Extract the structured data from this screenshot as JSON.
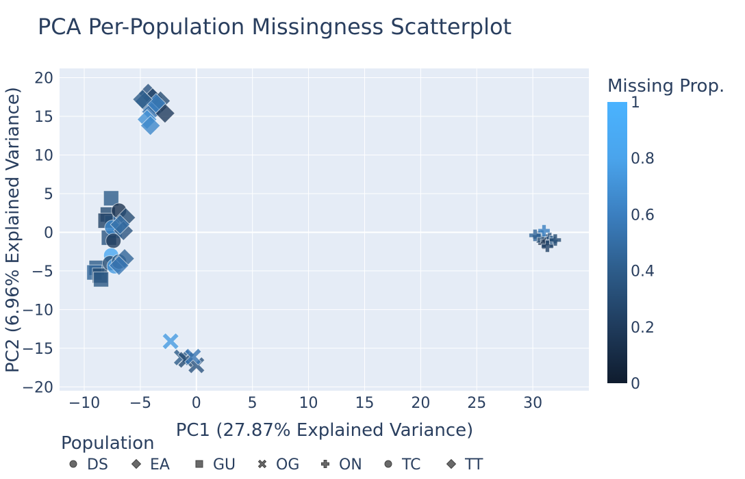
{
  "chart_data": {
    "type": "scatter",
    "title": "PCA Per-Population Missingness Scatterplot",
    "xlabel": "PC1 (27.87% Explained Variance)",
    "ylabel": "PC2 (6.96% Explained Variance)",
    "xlim": [
      -12.2,
      35
    ],
    "ylim": [
      -20.5,
      21.2
    ],
    "xticks": [
      -10,
      -5,
      0,
      5,
      10,
      15,
      20,
      25,
      30
    ],
    "yticks": [
      -20,
      -15,
      -10,
      -5,
      0,
      5,
      10,
      15,
      20
    ],
    "xtick_labels": [
      "−10",
      "−5",
      "0",
      "5",
      "10",
      "15",
      "20",
      "25",
      "30"
    ],
    "ytick_labels": [
      "−20",
      "−15",
      "−10",
      "−5",
      "0",
      "5",
      "10",
      "15",
      "20"
    ],
    "colorbar": {
      "title": "Missing Prop.",
      "range": [
        0,
        1
      ],
      "ticks": [
        0,
        0.2,
        0.4,
        0.6,
        0.8,
        1
      ],
      "tick_labels": [
        "0",
        "0.2",
        "0.4",
        "0.6",
        "0.8",
        "1"
      ],
      "colors": [
        "#0f1c2e",
        "#1f3b5c",
        "#2d5c8a",
        "#3b7fc0",
        "#4aa4ec",
        "#4ab3ff"
      ]
    },
    "legend": {
      "title": "Population",
      "placement": "bottom-left",
      "entries": [
        {
          "name": "DS",
          "symbol": "circle"
        },
        {
          "name": "EA",
          "symbol": "diamond"
        },
        {
          "name": "GU",
          "symbol": "square"
        },
        {
          "name": "OG",
          "symbol": "x"
        },
        {
          "name": "ON",
          "symbol": "cross"
        },
        {
          "name": "TC",
          "symbol": "circle"
        },
        {
          "name": "TT",
          "symbol": "diamond"
        }
      ]
    },
    "series": [
      {
        "name": "EA",
        "symbol": "diamond",
        "points": [
          {
            "x": -4.3,
            "y": 18.0,
            "m": 0.35
          },
          {
            "x": -3.9,
            "y": 17.4,
            "m": 0.25
          },
          {
            "x": -4.6,
            "y": 16.9,
            "m": 0.45
          },
          {
            "x": -3.5,
            "y": 16.2,
            "m": 0.2
          },
          {
            "x": -4.0,
            "y": 15.6,
            "m": 0.55
          },
          {
            "x": -3.2,
            "y": 17.0,
            "m": 0.3
          },
          {
            "x": -4.4,
            "y": 14.6,
            "m": 0.7
          },
          {
            "x": -4.1,
            "y": 13.8,
            "m": 0.65
          },
          {
            "x": -2.8,
            "y": 15.4,
            "m": 0.2
          },
          {
            "x": -3.6,
            "y": 16.7,
            "m": 0.6
          },
          {
            "x": -4.8,
            "y": 17.2,
            "m": 0.4
          }
        ]
      },
      {
        "name": "GU",
        "symbol": "square",
        "points": [
          {
            "x": -7.6,
            "y": 4.4,
            "m": 0.4
          },
          {
            "x": -7.9,
            "y": 2.3,
            "m": 0.3
          },
          {
            "x": -7.5,
            "y": 1.2,
            "m": 0.5
          },
          {
            "x": -7.3,
            "y": 0.2,
            "m": 0.7
          },
          {
            "x": -7.8,
            "y": -0.7,
            "m": 0.35
          },
          {
            "x": -8.9,
            "y": -4.6,
            "m": 0.4
          },
          {
            "x": -9.1,
            "y": -5.2,
            "m": 0.45
          },
          {
            "x": -8.6,
            "y": -5.6,
            "m": 0.3
          },
          {
            "x": -8.5,
            "y": -6.1,
            "m": 0.38
          },
          {
            "x": -8.1,
            "y": 1.5,
            "m": 0.25
          }
        ]
      },
      {
        "name": "DS",
        "symbol": "circle",
        "points": [
          {
            "x": -6.9,
            "y": 2.8,
            "m": 0.15
          },
          {
            "x": -7.5,
            "y": 0.6,
            "m": 0.65
          },
          {
            "x": -7.4,
            "y": -1.1,
            "m": 0.2
          },
          {
            "x": -7.6,
            "y": -3.0,
            "m": 0.85
          },
          {
            "x": -7.7,
            "y": -4.0,
            "m": 0.3
          },
          {
            "x": -7.3,
            "y": -4.4,
            "m": 0.75
          },
          {
            "x": -6.9,
            "y": -3.8,
            "m": 0.4
          }
        ]
      },
      {
        "name": "TT",
        "symbol": "diamond",
        "points": [
          {
            "x": -6.3,
            "y": 1.9,
            "m": 0.3
          },
          {
            "x": -6.5,
            "y": 0.2,
            "m": 0.35
          },
          {
            "x": -6.4,
            "y": -3.4,
            "m": 0.45
          },
          {
            "x": -6.9,
            "y": -4.3,
            "m": 0.55
          },
          {
            "x": -6.8,
            "y": 1.0,
            "m": 0.5
          }
        ]
      },
      {
        "name": "OG",
        "symbol": "x",
        "points": [
          {
            "x": -2.3,
            "y": -14.1,
            "m": 0.75
          },
          {
            "x": -1.3,
            "y": -16.2,
            "m": 0.4
          },
          {
            "x": -0.9,
            "y": -16.5,
            "m": 0.3
          },
          {
            "x": 0.0,
            "y": -17.2,
            "m": 0.35
          },
          {
            "x": -0.3,
            "y": -16.1,
            "m": 0.55
          }
        ]
      },
      {
        "name": "ON",
        "symbol": "cross",
        "points": [
          {
            "x": 30.8,
            "y": -0.5,
            "m": 0.5
          },
          {
            "x": 31.2,
            "y": -1.0,
            "m": 0.2
          },
          {
            "x": 31.5,
            "y": -0.8,
            "m": 0.35
          },
          {
            "x": 31.0,
            "y": -1.4,
            "m": 0.15
          },
          {
            "x": 30.5,
            "y": -0.6,
            "m": 0.3
          },
          {
            "x": 31.7,
            "y": -1.2,
            "m": 0.4
          },
          {
            "x": 31.0,
            "y": 0.2,
            "m": 0.6
          },
          {
            "x": 30.2,
            "y": -0.4,
            "m": 0.45
          },
          {
            "x": 32.0,
            "y": -1.0,
            "m": 0.3
          },
          {
            "x": 31.3,
            "y": -1.8,
            "m": 0.25
          }
        ]
      }
    ]
  }
}
